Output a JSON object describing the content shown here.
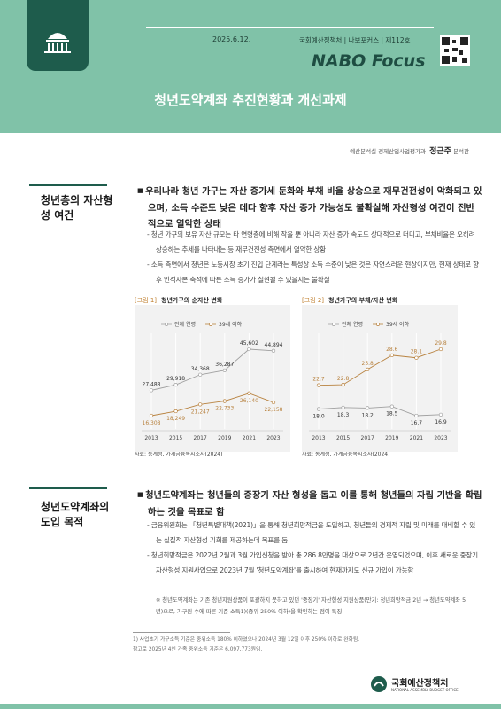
{
  "header": {
    "date": "2025.6.12.",
    "publication": "국회예산정책처 | 나보포커스 | 제112호",
    "logo": "NABO Focus",
    "title": "청년도약계좌 추진현황과 개선과제"
  },
  "author": {
    "department": "예산분석실 경제산업사업평가과",
    "name": "정근주",
    "position": "분석관"
  },
  "sections": [
    {
      "heading": "청년층의 자산형성 여건",
      "bullet": "우리나라 청년 가구는 자산 증가세 둔화와 부채 비율 상승으로 재무건전성이 악화되고 있으며, 소득 수준도 낮은 데다 향후 자산 증가 가능성도 불확실해 자산형성 여건이 전반적으로 열악한 상태",
      "subs": [
        "청년 가구의 보유 자산 규모는 타 연령층에 비해 작을 뿐 아니라 자산 증가 속도도 상대적으로 더디고, 부채비율은 오히려 상승하는 추세를 나타내는 등 재무건전성 측면에서 열악한 상황",
        "소득 측면에서 청년은 노동시장 초기 진입 단계라는 특성상 소득 수준이 낮은 것은 자연스러운 현상이지만, 현재 상태로 향후 인적자본 축적에 따른 소득 증가가 실현될 수 있을지는 불확실"
      ]
    },
    {
      "heading": "청년도약계좌의 도입 목적",
      "bullet": "청년도약계좌는 청년들의 중장기 자산 형성을 돕고 이를 통해 청년들의 자립 기반을 확립하는 것을 목표로 함",
      "subs": [
        "금융위원회는 「청년특별대책(2021)」을 통해 청년희망적금을 도입하고, 청년들의 경제적 자립 및 미래를 대비할 수 있는 실질적 자산형성 기회를 제공하는데 목표를 둠",
        "청년희망적금은 2022년 2월과 3월 가입신청을 받아 총 286.8만명을 대상으로 2년간 운영되었으며, 이후 새로운 중장기 자산형성 지원사업으로 2023년 7월 '청년도약계좌'를 출시하여 현재까지도 신규 가입이 가능함"
      ],
      "note": "※ 청년도약계좌는 기존 청년지원상품이 포괄하지 못하고 있던 '중장기' 자산형성 지원상품(만기: 청년희망적금 2년 → 청년도약계좌 5년)으로, 가구원 수에 따른 기준 소득1)(중위 250% 이하)을 확인하는 점이 특징"
    }
  ],
  "chart_data": [
    {
      "type": "line",
      "label": "[그림 1]",
      "title": "청년가구의 순자산 변화",
      "unit": "(단위: 만 원)",
      "x": [
        2013,
        2015,
        2017,
        2019,
        2021,
        2023
      ],
      "series": [
        {
          "name": "전체 연령",
          "color": "#a0a0a0",
          "values": [
            27488,
            29918,
            34368,
            36287,
            45602,
            44894
          ],
          "value_labels": [
            "27,488",
            "29,918",
            "34,368",
            "36,287",
            "45,602",
            "44,894"
          ]
        },
        {
          "name": "39세 이하",
          "color": "#b8823f",
          "values": [
            16308,
            18249,
            21247,
            22733,
            26140,
            22158
          ],
          "value_labels": [
            "16,308",
            "18,249",
            "21,247",
            "22,733",
            "26,140",
            "22,158"
          ]
        }
      ],
      "source": "자료: 통계청, 가계금융복지조사(2024)"
    },
    {
      "type": "line",
      "label": "[그림 2]",
      "title": "청년가구의 부채/자산 변화",
      "unit": "(단위: %)",
      "x": [
        2013,
        2015,
        2017,
        2019,
        2021,
        2023
      ],
      "series": [
        {
          "name": "전체 연령",
          "color": "#a0a0a0",
          "values": [
            18.0,
            18.3,
            18.2,
            18.5,
            16.7,
            16.9
          ],
          "value_labels": [
            "18.0",
            "18.3",
            "18.2",
            "18.5",
            "16.7",
            "16.9"
          ]
        },
        {
          "name": "39세 이하",
          "color": "#b8823f",
          "values": [
            22.7,
            22.8,
            25.8,
            28.6,
            28.1,
            29.8
          ],
          "value_labels": [
            "22.7",
            "22.8",
            "25.8",
            "28.6",
            "28.1",
            "29.8"
          ]
        }
      ],
      "source": "자료: 통계청, 가계금융복지조사(2024)"
    }
  ],
  "footnote": "1) 사업초기 가구소득 기준은 중위소득 180% 이하였으나 2024년 3월 12일 이후 250% 이하로 완화됨. 참고로 2025년 4인 가족 중위소득 기준은 6,097,773원임.",
  "footer": {
    "org": "국회예산정책처",
    "org_en": "NATIONAL ASSEMBLY BUDGET OFFICE"
  }
}
